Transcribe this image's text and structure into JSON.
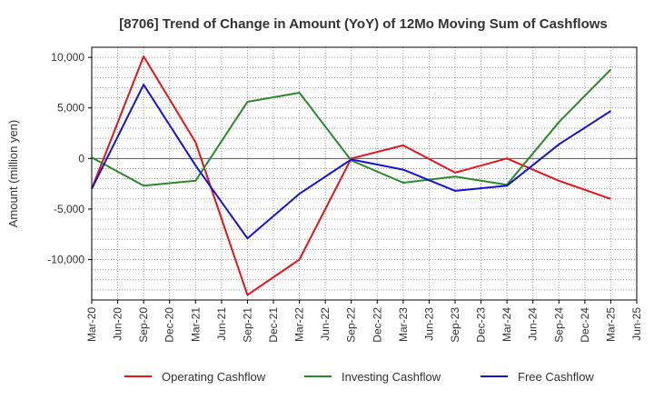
{
  "chart_data": {
    "type": "line",
    "title": "[8706]  Trend of Change in Amount (YoY) of 12Mo Moving Sum of Cashflows",
    "xlabel": "",
    "ylabel": "Amount (million yen)",
    "ylim": [
      -14000,
      11000
    ],
    "yticks": [
      10000,
      5000,
      0,
      -5000,
      -10000
    ],
    "ytick_labels": [
      "10,000",
      "5,000",
      "0",
      "-5,000",
      "-10,000"
    ],
    "grid": true,
    "legend_position": "bottom",
    "categories": [
      "Mar-20",
      "Jun-20",
      "Sep-20",
      "Dec-20",
      "Mar-21",
      "Jun-21",
      "Sep-21",
      "Dec-21",
      "Mar-22",
      "Jun-22",
      "Sep-22",
      "Dec-22",
      "Mar-23",
      "Jun-23",
      "Sep-23",
      "Dec-23",
      "Mar-24",
      "Jun-24",
      "Sep-24",
      "Dec-24",
      "Mar-25",
      "Jun-25"
    ],
    "series": [
      {
        "name": "Operating Cashflow",
        "color": "#e8131b",
        "values": [
          -3000,
          null,
          10100,
          null,
          1600,
          null,
          -13500,
          null,
          -10000,
          null,
          0,
          null,
          1300,
          null,
          -1400,
          null,
          0,
          null,
          -2200,
          null,
          -4000,
          null
        ]
      },
      {
        "name": "Investing Cashflow",
        "color": "#2a8a2a",
        "values": [
          100,
          null,
          -2700,
          null,
          -2200,
          null,
          5600,
          null,
          6500,
          null,
          -200,
          null,
          -2400,
          null,
          -1800,
          null,
          -2600,
          null,
          3600,
          null,
          8800,
          null
        ]
      },
      {
        "name": "Free Cashflow",
        "color": "#1414d8",
        "values": [
          -3000,
          null,
          7300,
          null,
          -700,
          null,
          -7900,
          null,
          -3500,
          null,
          -100,
          null,
          -1100,
          null,
          -3200,
          null,
          -2700,
          null,
          1400,
          null,
          4700,
          null
        ]
      }
    ]
  }
}
